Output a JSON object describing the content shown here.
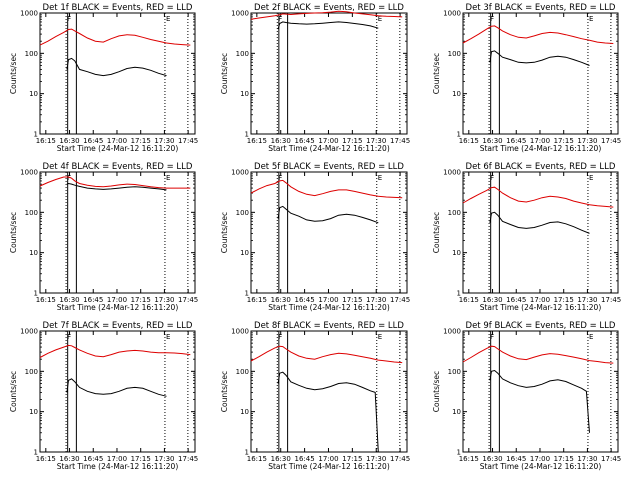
{
  "figure": {
    "panels": [
      {
        "title": "Det 1f BLACK = Events, RED = LLD",
        "xlabel": "Start Time (24-Mar-12 16:11:20)",
        "ylabel": "Counts/sec"
      },
      {
        "title": "Det 2f BLACK = Events, RED = LLD",
        "xlabel": "Start Time (24-Mar-12 16:11:20)",
        "ylabel": "Counts/sec"
      },
      {
        "title": "Det 3f BLACK = Events, RED = LLD",
        "xlabel": "Start Time (24-Mar-12 16:11:20)",
        "ylabel": "Counts/sec"
      },
      {
        "title": "Det 4f BLACK = Events, RED = LLD",
        "xlabel": "Start Time (24-Mar-12 16:11:20)",
        "ylabel": "Counts/sec"
      },
      {
        "title": "Det 5f BLACK = Events, RED = LLD",
        "xlabel": "Start Time (24-Mar-12 16:11:20)",
        "ylabel": "Counts/sec"
      },
      {
        "title": "Det 6f BLACK = Events, RED = LLD",
        "xlabel": "Start Time (24-Mar-12 16:11:20)",
        "ylabel": "Counts/sec"
      },
      {
        "title": "Det 7f BLACK = Events, RED = LLD",
        "xlabel": "Start Time (24-Mar-12 16:11:20)",
        "ylabel": "Counts/sec"
      },
      {
        "title": "Det 8f BLACK = Events, RED = LLD",
        "xlabel": "Start Time (24-Mar-12 16:11:20)",
        "ylabel": "Counts/sec"
      },
      {
        "title": "Det 9f BLACK = Events, RED = LLD",
        "xlabel": "Start Time (24-Mar-12 16:11:20)",
        "ylabel": "Counts/sec"
      }
    ]
  },
  "chart_data": {
    "type": "line",
    "layout": "3x3 grid",
    "colors": {
      "events": "#000000",
      "lld": "#dd0000",
      "axes": "#000000"
    },
    "x_unit": "minutes since 16:11:20 UTC",
    "xlim": [
      0,
      98
    ],
    "x_ticks": [
      3.67,
      18.67,
      33.67,
      48.67,
      63.67,
      78.67,
      93.67
    ],
    "x_tick_labels": [
      "16:15",
      "16:30",
      "16:45",
      "17:00",
      "17:15",
      "17:30",
      "17:45"
    ],
    "ylim": [
      1,
      1000
    ],
    "y_scale": "log",
    "y_ticks": [
      1,
      10,
      100,
      1000
    ],
    "y_tick_labels": [
      "1",
      "10",
      "100",
      "1000"
    ],
    "markers": {
      "solid_lines": [
        17.5,
        23.0
      ],
      "dotted_lines": [
        16.5,
        79.0,
        93.5
      ],
      "flags": [
        {
          "x": 16.5,
          "label": "F"
        },
        {
          "x": 79.0,
          "label": "E"
        }
      ]
    },
    "series_x": [
      17,
      18,
      20,
      22,
      25,
      28,
      32,
      36,
      40,
      45,
      50,
      55,
      60,
      65,
      70,
      75,
      80,
      85,
      90,
      95
    ],
    "panels": [
      {
        "detector": "1f",
        "lld": {
          "name": "LLD",
          "x": [
            0,
            5,
            10,
            15,
            18,
            20,
            22,
            25,
            30,
            35,
            40,
            45,
            50,
            55,
            60,
            65,
            70,
            75,
            80,
            85,
            90,
            95
          ],
          "values": [
            160,
            200,
            260,
            330,
            390,
            400,
            360,
            310,
            240,
            200,
            190,
            230,
            270,
            290,
            280,
            250,
            220,
            200,
            180,
            170,
            165,
            160
          ]
        },
        "events": {
          "name": "Events",
          "x": [
            17,
            18,
            20,
            22,
            25,
            30,
            35,
            40,
            45,
            50,
            55,
            60,
            65,
            70,
            75,
            80
          ],
          "values": [
            40,
            70,
            75,
            65,
            40,
            35,
            30,
            28,
            30,
            35,
            42,
            45,
            43,
            38,
            32,
            28
          ]
        }
      },
      {
        "detector": "2f",
        "lld": {
          "name": "LLD",
          "x": [
            0,
            5,
            10,
            15,
            18,
            20,
            22,
            25,
            30,
            35,
            40,
            45,
            50,
            55,
            60,
            65,
            70,
            75,
            80,
            85,
            90,
            95
          ],
          "values": [
            700,
            750,
            800,
            850,
            900,
            950,
            940,
            920,
            950,
            980,
            1000,
            1020,
            1050,
            1100,
            1080,
            1000,
            950,
            900,
            850,
            830,
            820,
            800
          ]
        },
        "events": {
          "name": "Events",
          "x": [
            17,
            18,
            20,
            22,
            25,
            30,
            35,
            40,
            45,
            50,
            55,
            60,
            65,
            70,
            75,
            80
          ],
          "values": [
            400,
            550,
            600,
            580,
            560,
            540,
            530,
            540,
            560,
            580,
            600,
            580,
            550,
            520,
            480,
            420
          ]
        }
      },
      {
        "detector": "3f",
        "lld": {
          "name": "LLD",
          "x": [
            0,
            5,
            10,
            15,
            18,
            20,
            22,
            25,
            30,
            35,
            40,
            45,
            50,
            55,
            60,
            65,
            70,
            75,
            80,
            85,
            90,
            95
          ],
          "values": [
            180,
            230,
            300,
            400,
            470,
            480,
            430,
            360,
            290,
            250,
            240,
            270,
            310,
            330,
            320,
            290,
            260,
            230,
            210,
            190,
            180,
            175
          ]
        },
        "events": {
          "name": "Events",
          "x": [
            17,
            18,
            20,
            22,
            25,
            30,
            35,
            40,
            45,
            50,
            55,
            60,
            65,
            70,
            75,
            80
          ],
          "values": [
            60,
            110,
            115,
            100,
            80,
            70,
            60,
            58,
            60,
            68,
            80,
            85,
            80,
            70,
            60,
            50
          ]
        }
      },
      {
        "detector": "4f",
        "lld": {
          "name": "LLD",
          "x": [
            0,
            5,
            10,
            15,
            18,
            20,
            22,
            25,
            30,
            35,
            40,
            45,
            50,
            55,
            60,
            65,
            70,
            75,
            80,
            85,
            90,
            95
          ],
          "values": [
            450,
            550,
            650,
            750,
            750,
            700,
            600,
            520,
            470,
            440,
            430,
            450,
            480,
            500,
            490,
            460,
            430,
            410,
            400,
            400,
            400,
            400
          ]
        },
        "events": {
          "name": "Events",
          "x": [
            17,
            18,
            20,
            22,
            25,
            30,
            35,
            40,
            45,
            50,
            55,
            60,
            65,
            70,
            75,
            80
          ],
          "values": [
            500,
            520,
            500,
            470,
            440,
            400,
            380,
            370,
            380,
            400,
            420,
            430,
            420,
            400,
            380,
            360
          ]
        }
      },
      {
        "detector": "5f",
        "lld": {
          "name": "LLD",
          "x": [
            0,
            5,
            10,
            15,
            18,
            20,
            22,
            25,
            30,
            35,
            40,
            45,
            50,
            55,
            60,
            65,
            70,
            75,
            80,
            85,
            90,
            95
          ],
          "values": [
            300,
            380,
            460,
            520,
            600,
            620,
            540,
            430,
            330,
            280,
            260,
            290,
            330,
            360,
            360,
            330,
            300,
            270,
            250,
            240,
            235,
            230
          ]
        },
        "events": {
          "name": "Events",
          "x": [
            17,
            18,
            20,
            22,
            25,
            30,
            35,
            40,
            45,
            50,
            55,
            60,
            65,
            70,
            75,
            80
          ],
          "values": [
            70,
            130,
            140,
            120,
            95,
            80,
            65,
            60,
            62,
            70,
            85,
            90,
            85,
            75,
            65,
            55
          ]
        }
      },
      {
        "detector": "6f",
        "lld": {
          "name": "LLD",
          "x": [
            0,
            5,
            10,
            15,
            18,
            20,
            22,
            25,
            30,
            35,
            40,
            45,
            50,
            55,
            60,
            65,
            70,
            75,
            80,
            85,
            90,
            95
          ],
          "values": [
            170,
            220,
            280,
            350,
            410,
            420,
            370,
            300,
            230,
            190,
            180,
            200,
            230,
            250,
            240,
            220,
            190,
            170,
            155,
            145,
            140,
            135
          ]
        },
        "events": {
          "name": "Events",
          "x": [
            17,
            18,
            20,
            22,
            25,
            30,
            35,
            40,
            45,
            50,
            55,
            60,
            65,
            70,
            75,
            80
          ],
          "values": [
            55,
            95,
            100,
            85,
            60,
            50,
            42,
            40,
            42,
            48,
            56,
            58,
            52,
            44,
            36,
            30
          ]
        }
      },
      {
        "detector": "7f",
        "lld": {
          "name": "LLD",
          "x": [
            0,
            5,
            10,
            15,
            18,
            20,
            22,
            25,
            30,
            35,
            40,
            45,
            50,
            55,
            60,
            65,
            70,
            75,
            80,
            85,
            90,
            95
          ],
          "values": [
            220,
            280,
            340,
            400,
            440,
            430,
            390,
            340,
            280,
            240,
            230,
            260,
            300,
            320,
            330,
            320,
            300,
            290,
            290,
            285,
            275,
            260
          ]
        },
        "events": {
          "name": "Events",
          "x": [
            17,
            18,
            20,
            22,
            25,
            30,
            35,
            40,
            45,
            50,
            55,
            60,
            65,
            70,
            75,
            80
          ],
          "values": [
            30,
            60,
            65,
            55,
            40,
            32,
            28,
            27,
            28,
            32,
            38,
            40,
            38,
            32,
            27,
            24
          ]
        }
      },
      {
        "detector": "8f",
        "lld": {
          "name": "LLD",
          "x": [
            0,
            5,
            10,
            15,
            18,
            20,
            22,
            25,
            30,
            35,
            40,
            45,
            50,
            55,
            60,
            65,
            70,
            75,
            80,
            85,
            90,
            95
          ],
          "values": [
            180,
            230,
            300,
            380,
            420,
            410,
            360,
            300,
            240,
            210,
            200,
            230,
            260,
            280,
            270,
            250,
            230,
            210,
            190,
            180,
            170,
            165
          ]
        },
        "events": {
          "name": "Events",
          "x": [
            17,
            18,
            20,
            22,
            25,
            30,
            35,
            40,
            45,
            50,
            55,
            60,
            65,
            70,
            75,
            78,
            80
          ],
          "values": [
            50,
            90,
            95,
            80,
            55,
            45,
            38,
            35,
            37,
            42,
            50,
            52,
            48,
            40,
            33,
            30,
            1
          ]
        }
      },
      {
        "detector": "9f",
        "lld": {
          "name": "LLD",
          "x": [
            0,
            5,
            10,
            15,
            18,
            20,
            22,
            25,
            30,
            35,
            40,
            45,
            50,
            55,
            60,
            65,
            70,
            75,
            80,
            85,
            90,
            95
          ],
          "values": [
            170,
            220,
            290,
            370,
            420,
            410,
            360,
            300,
            240,
            205,
            195,
            225,
            255,
            275,
            265,
            245,
            225,
            205,
            185,
            175,
            165,
            160
          ]
        },
        "events": {
          "name": "Events",
          "x": [
            17,
            18,
            20,
            22,
            25,
            30,
            35,
            40,
            45,
            50,
            55,
            60,
            65,
            70,
            75,
            78,
            80
          ],
          "values": [
            60,
            100,
            105,
            90,
            65,
            52,
            44,
            40,
            42,
            48,
            58,
            62,
            56,
            46,
            38,
            32,
            3
          ]
        }
      }
    ]
  }
}
